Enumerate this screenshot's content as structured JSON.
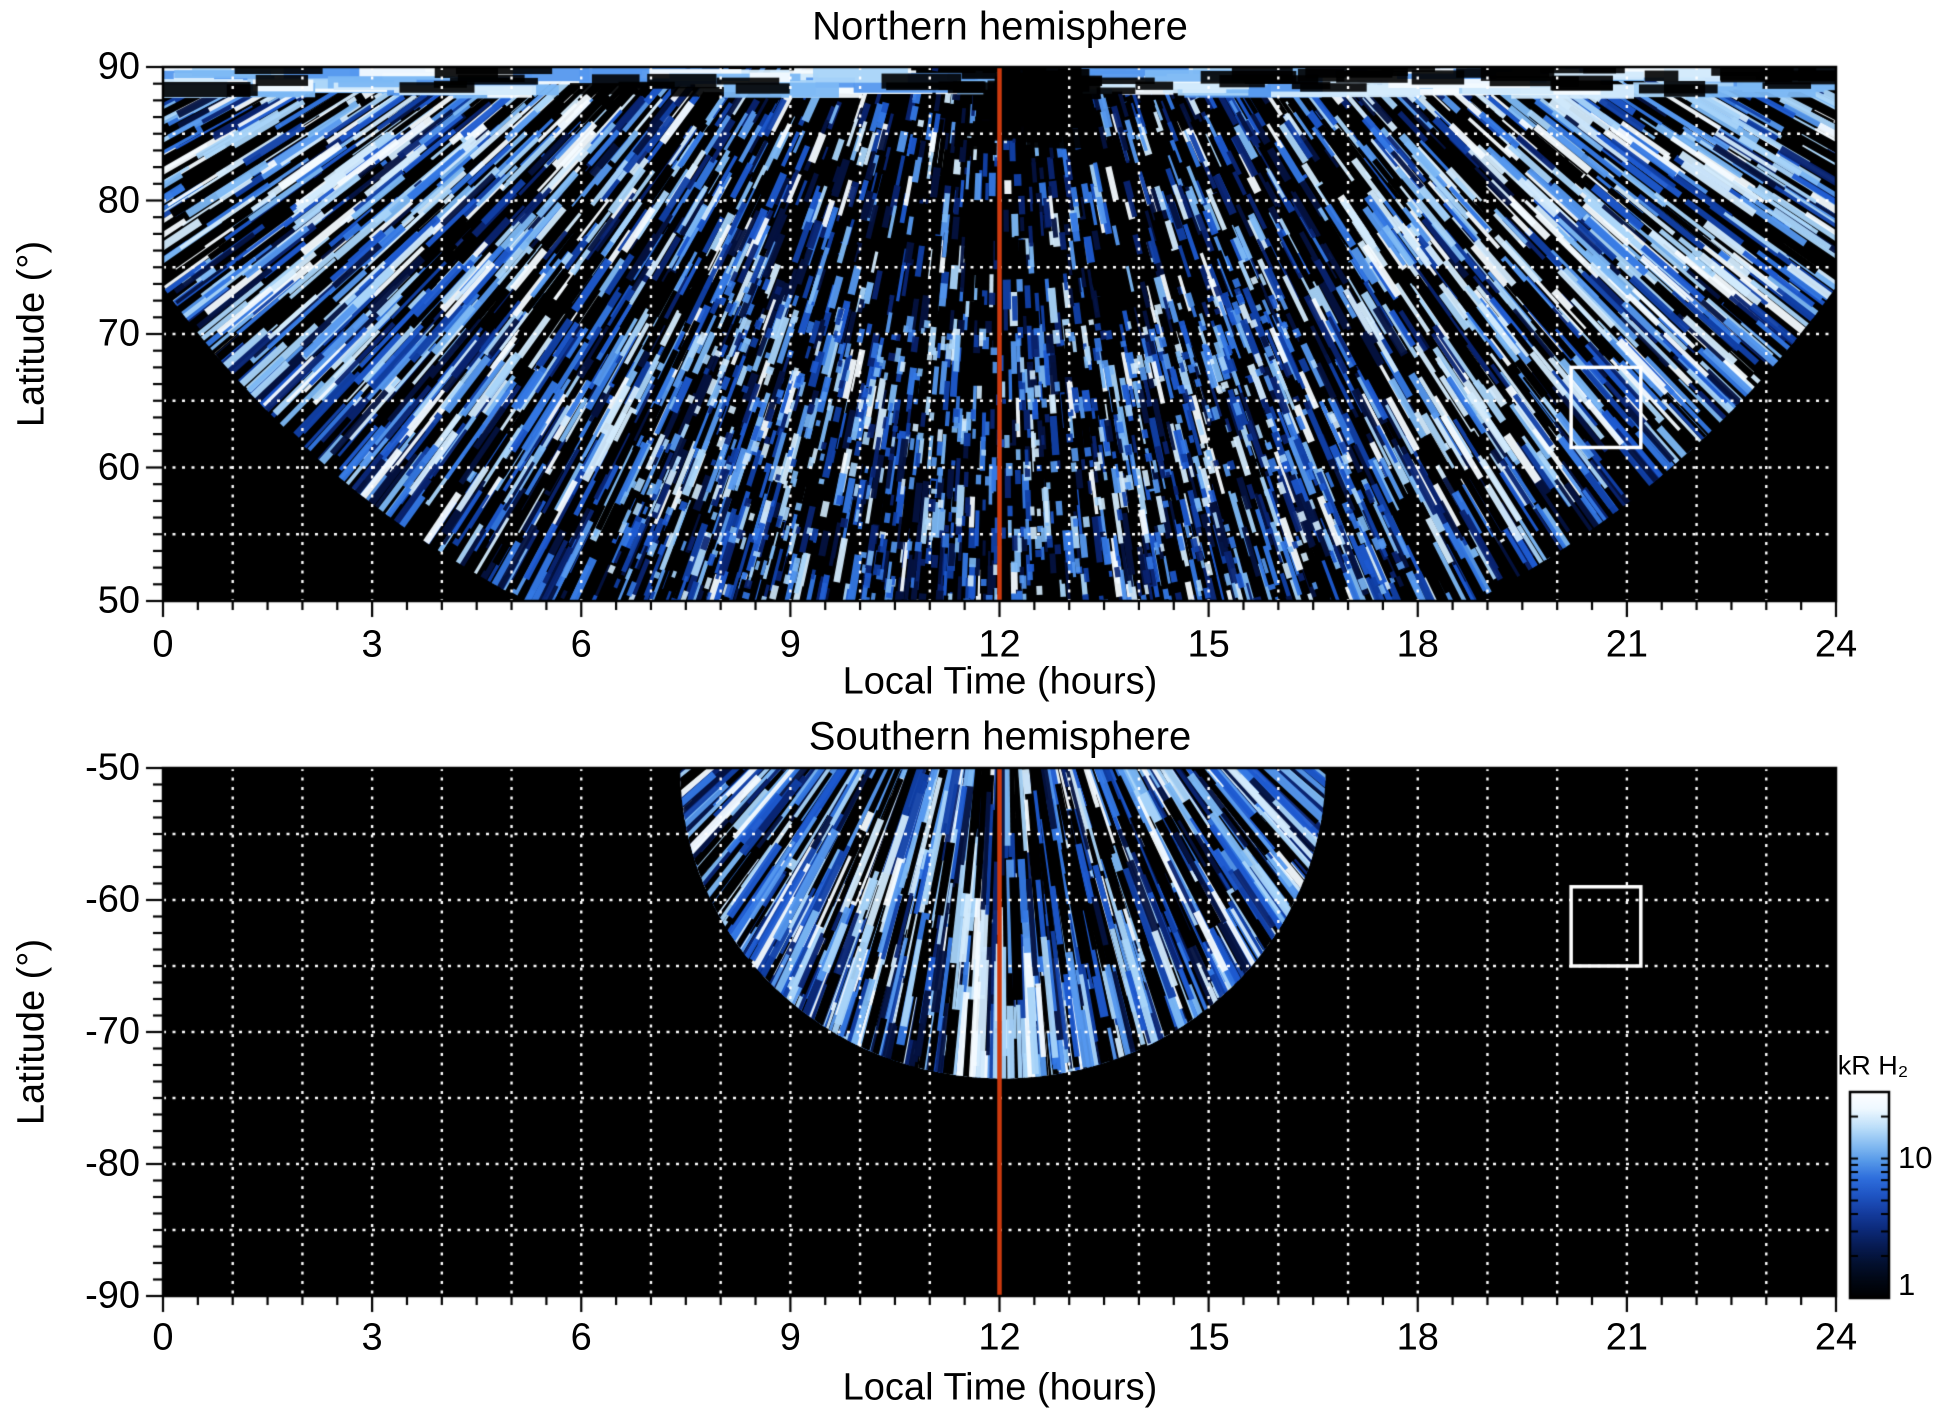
{
  "figure": {
    "background": "#ffffff",
    "text_color": "#000000",
    "noon_line_color": "#cc3a0e",
    "grid_color": "#ffffff",
    "no_data_color": "#000000",
    "selection_box_color": "#ffffff"
  },
  "chart_data": [
    {
      "type": "heatmap",
      "panel": "north",
      "title": "Northern hemisphere",
      "xlabel": "Local Time (hours)",
      "ylabel": "Latitude (°)",
      "xlim": [
        0,
        24
      ],
      "ylim": [
        50,
        90
      ],
      "xtick_values": [
        0,
        3,
        6,
        9,
        12,
        15,
        18,
        21,
        24
      ],
      "xtick_labels": [
        "0",
        "3",
        "6",
        "9",
        "12",
        "15",
        "18",
        "21",
        "24"
      ],
      "ytick_values": [
        90,
        80,
        70,
        60,
        50
      ],
      "ytick_labels": [
        "90",
        "80",
        "70",
        "60",
        "50"
      ],
      "x_minor_step_hours": 0.5,
      "y_minor_step_deg": 1.25,
      "grid": {
        "x_step_hours": 1,
        "y_step_deg": 5,
        "style": "dotted",
        "color": "#ffffff"
      },
      "noon_line_lt": 12,
      "selection_box": {
        "lt_min": 20.2,
        "lt_max": 21.2,
        "lat_min": 61.5,
        "lat_max": 67.5
      },
      "coverage": {
        "description": "Blue H2 auroral emission swaths fanning out from local noon; data fill latitudes 74-90 deg at all local times and extend down to 50 deg between about LT 5 and LT 19; lower-left and lower-right corners are black (no data). Bright streaked arcs on dawn/dusk wings, dense speckle near midday low latitudes, bright band at 88-90 deg with a dark notch near LT 12.",
        "mask_circle_data_units": {
          "center_lt": 12,
          "center_lat": 118.4,
          "radius_lt": 14.8,
          "radius_lat": 77.1
        }
      }
    },
    {
      "type": "heatmap",
      "panel": "south",
      "title": "Southern hemisphere",
      "xlabel": "Local Time (hours)",
      "ylabel": "Latitude (°)",
      "xlim": [
        0,
        24
      ],
      "ylim": [
        -90,
        -50
      ],
      "xtick_values": [
        0,
        3,
        6,
        9,
        12,
        15,
        18,
        21,
        24
      ],
      "xtick_labels": [
        "0",
        "3",
        "6",
        "9",
        "12",
        "15",
        "18",
        "21",
        "24"
      ],
      "ytick_values": [
        -50,
        -60,
        -70,
        -80,
        -90
      ],
      "ytick_labels": [
        "-50",
        "-60",
        "-70",
        "-80",
        "-90"
      ],
      "x_minor_step_hours": 0.5,
      "y_minor_step_deg": 1.25,
      "grid": {
        "x_step_hours": 1,
        "y_step_deg": 5,
        "style": "dotted",
        "color": "#ffffff"
      },
      "noon_line_lt": 12,
      "selection_box": {
        "lt_min": 20.2,
        "lt_max": 21.2,
        "lat_min": -65,
        "lat_max": -59
      },
      "coverage": {
        "description": "Mostly black (no data); a fan of bright blue emission swaths between about LT 7.7 and LT 16.6 at -50 deg, narrowing downward to about -73 deg near LT 12; streaks radiate from above local noon.",
        "mask_ellipse_data_units": {
          "center_lt": 12.05,
          "center_lat": -50,
          "radius_lt": 4.56,
          "radius_lat": 23.2
        }
      }
    }
  ],
  "colorbar": {
    "label": "kR H₂",
    "scale": "log",
    "range": [
      1,
      30
    ],
    "unit": "kR",
    "tick_labels": [
      {
        "value": 10,
        "label": "10"
      },
      {
        "value": 1,
        "label": "1"
      }
    ],
    "gradient_top_to_bottom": [
      "#ffffff",
      "#eef8ff",
      "#bfe0fa",
      "#8abff2",
      "#579ae9",
      "#2f6fdd",
      "#1f55c4",
      "#153da0",
      "#0c2a7a",
      "#071b52",
      "#03102f",
      "#010714",
      "#000000"
    ]
  },
  "streak_palette": [
    "#01030e",
    "#041240",
    "#0a2472",
    "#1140a8",
    "#1e5ad0",
    "#3478e4",
    "#5598ee",
    "#7cb8f4",
    "#a8d4f9",
    "#d2eafc",
    "#f4fbff"
  ]
}
